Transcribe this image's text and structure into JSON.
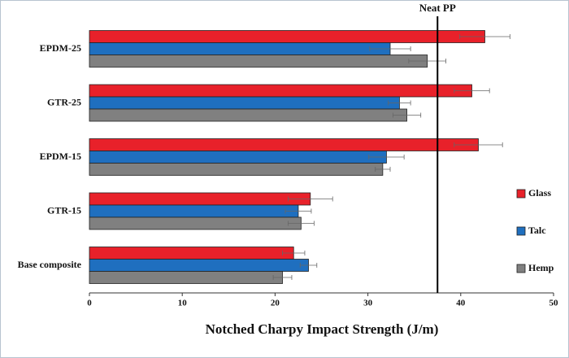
{
  "chart_data": {
    "type": "hbar",
    "categories": [
      "EPDM-25",
      "GTR-25",
      "EPDM-15",
      "GTR-15",
      "Base composite"
    ],
    "series": [
      {
        "name": "Glass",
        "color": "#e8212a",
        "values": [
          42.6,
          41.2,
          41.9,
          23.8,
          22.0
        ],
        "errors": [
          2.7,
          1.9,
          2.6,
          2.4,
          1.2
        ]
      },
      {
        "name": "Talc",
        "color": "#1f6fbf",
        "values": [
          32.4,
          33.4,
          32.0,
          22.5,
          23.6
        ],
        "errors": [
          2.2,
          1.2,
          1.9,
          1.4,
          0.9
        ]
      },
      {
        "name": "Hemp",
        "color": "#808080",
        "values": [
          36.4,
          34.2,
          31.6,
          22.8,
          20.8
        ],
        "errors": [
          2.0,
          1.5,
          0.8,
          1.4,
          1.0
        ]
      }
    ],
    "xlabel": "Notched Charpy Impact Strength (J/m)",
    "xlim": [
      0,
      50
    ],
    "xticks": [
      0,
      10,
      20,
      30,
      40,
      50
    ],
    "reference_line": {
      "label": "Neat PP",
      "value": 37.5
    },
    "legend": "right",
    "grid": false
  }
}
